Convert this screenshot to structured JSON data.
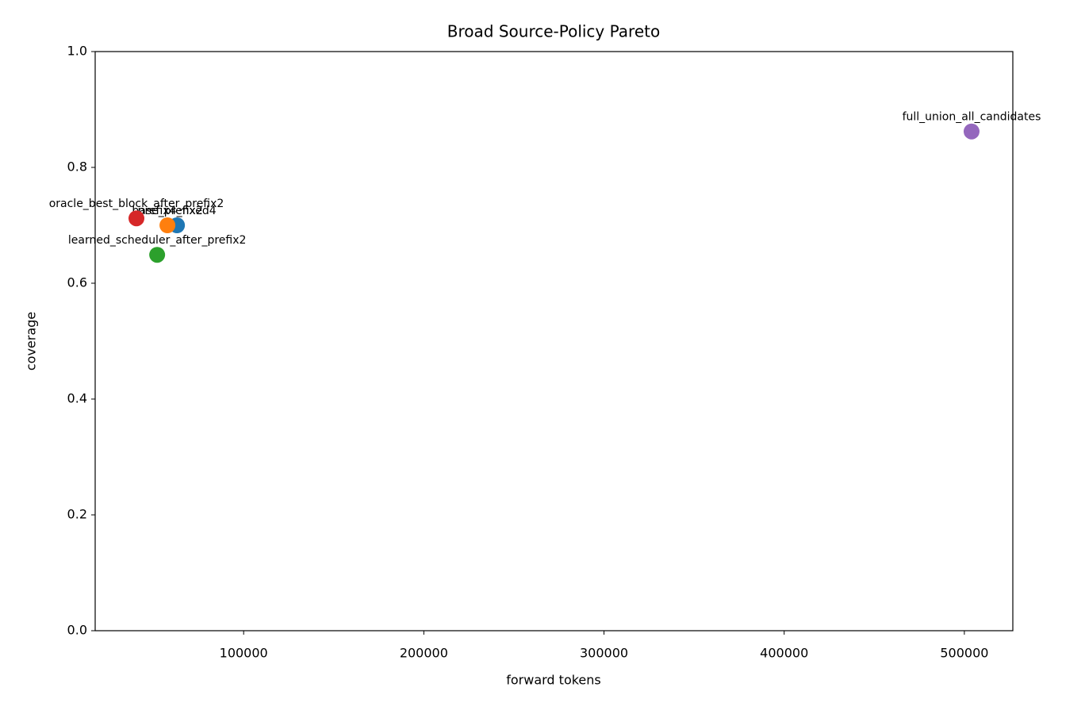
{
  "chart_data": {
    "type": "scatter",
    "title": "Broad Source-Policy Pareto",
    "x_label": "forward tokens",
    "y_label": "coverage",
    "xlim": [
      17600,
      526900
    ],
    "ylim": [
      0,
      1
    ],
    "xticks": [
      100000,
      200000,
      300000,
      400000,
      500000
    ],
    "yticks": [
      {
        "value": 0,
        "label": "0.0"
      },
      0.2,
      0.4,
      0.6,
      0.8,
      {
        "value": 1,
        "label": "1.0"
      }
    ],
    "grid": false,
    "series": [
      {
        "name": "prefix4_fixed4",
        "color": "#1f77b4",
        "x": [
          63000
        ],
        "values": [
          0.7
        ]
      },
      {
        "name": "base_prefix2",
        "color": "#ff7f0e",
        "x": [
          57700
        ],
        "values": [
          0.7
        ]
      },
      {
        "name": "learned_scheduler_after_prefix2",
        "color": "#2ca02c",
        "x": [
          52000
        ],
        "values": [
          0.649
        ]
      },
      {
        "name": "oracle_best_block_after_prefix2",
        "color": "#d62728",
        "x": [
          40500
        ],
        "values": [
          0.712
        ]
      },
      {
        "name": "full_union_all_candidates",
        "color": "#9467bd",
        "x": [
          504000
        ],
        "values": [
          0.862
        ]
      }
    ]
  }
}
